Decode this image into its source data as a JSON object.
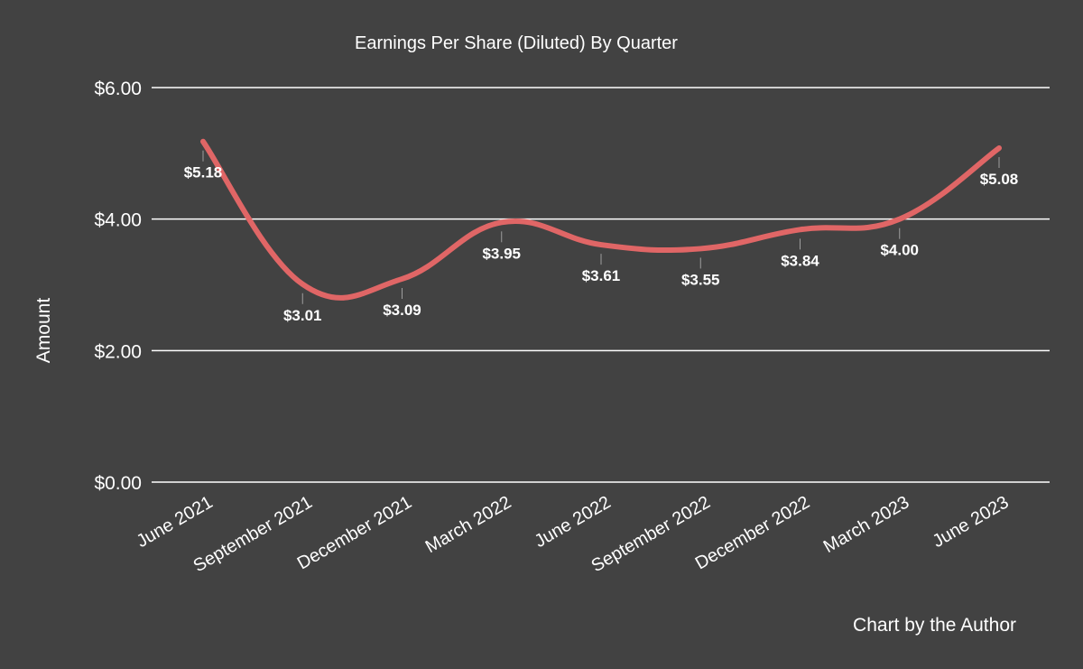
{
  "chart_data": {
    "type": "line",
    "title": "Earnings Per Share (Diluted) By Quarter",
    "xlabel": "",
    "ylabel": "Amount",
    "credit": "Chart by the Author",
    "categories": [
      "June 2021",
      "September 2021",
      "December 2021",
      "March 2022",
      "June 2022",
      "September 2022",
      "December 2022",
      "March 2023",
      "June 2023"
    ],
    "values": [
      5.18,
      3.01,
      3.09,
      3.95,
      3.61,
      3.55,
      3.84,
      4.0,
      5.08
    ],
    "data_labels": [
      "$5.18",
      "$3.01",
      "$3.09",
      "$3.95",
      "$3.61",
      "$3.55",
      "$3.84",
      "$4.00",
      "$5.08"
    ],
    "yticks": [
      0,
      2,
      4,
      6
    ],
    "ytick_labels": [
      "$0.00",
      "$2.00",
      "$4.00",
      "$6.00"
    ],
    "ylim": [
      0,
      6
    ],
    "grid": true,
    "legend": "none",
    "colors": {
      "background": "#424242",
      "line": "#e06666",
      "text": "#ffffff",
      "grid": "#ffffff"
    }
  }
}
